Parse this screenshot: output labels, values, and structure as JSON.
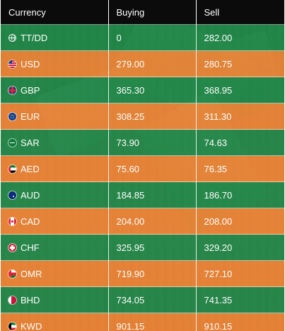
{
  "table": {
    "headers": [
      "Currency",
      "Buying",
      "Sell"
    ],
    "rows": [
      {
        "code": "TT/DD",
        "icon": "globe-icon",
        "buying": "0",
        "sell": "282.00",
        "color": "green"
      },
      {
        "code": "USD",
        "icon": "us-flag-icon",
        "buying": "279.00",
        "sell": "280.75",
        "color": "orange"
      },
      {
        "code": "GBP",
        "icon": "gb-flag-icon",
        "buying": "365.30",
        "sell": "368.95",
        "color": "green"
      },
      {
        "code": "EUR",
        "icon": "eu-flag-icon",
        "buying": "308.25",
        "sell": "311.30",
        "color": "orange"
      },
      {
        "code": "SAR",
        "icon": "sa-flag-icon",
        "buying": "73.90",
        "sell": "74.63",
        "color": "green"
      },
      {
        "code": "AED",
        "icon": "ae-flag-icon",
        "buying": "75.60",
        "sell": "76.35",
        "color": "orange"
      },
      {
        "code": "AUD",
        "icon": "au-flag-icon",
        "buying": "184.85",
        "sell": "186.70",
        "color": "green"
      },
      {
        "code": "CAD",
        "icon": "ca-flag-icon",
        "buying": "204.00",
        "sell": "208.00",
        "color": "orange"
      },
      {
        "code": "CHF",
        "icon": "ch-flag-icon",
        "buying": "325.95",
        "sell": "329.20",
        "color": "green"
      },
      {
        "code": "OMR",
        "icon": "om-flag-icon",
        "buying": "719.90",
        "sell": "727.10",
        "color": "orange"
      },
      {
        "code": "BHD",
        "icon": "bh-flag-icon",
        "buying": "734.05",
        "sell": "741.35",
        "color": "green"
      },
      {
        "code": "KWD",
        "icon": "kw-flag-icon",
        "buying": "901.15",
        "sell": "910.15",
        "color": "orange"
      }
    ]
  },
  "colors": {
    "header_bg": "#0b0b0b",
    "row_green": "#138444",
    "row_orange": "#ec8030",
    "text": "#ffffff"
  }
}
